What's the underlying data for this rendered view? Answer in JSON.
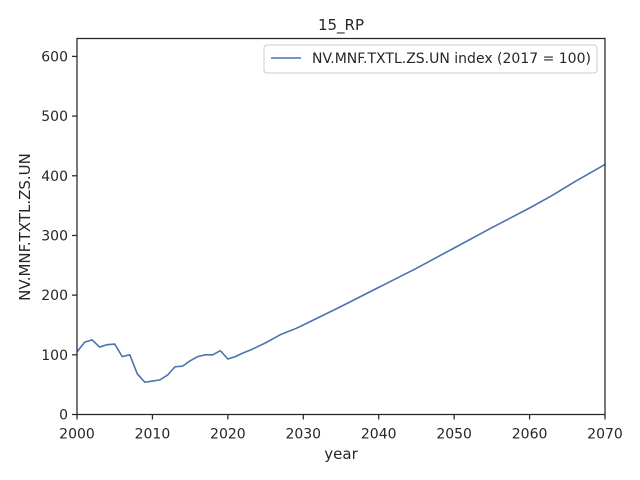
{
  "chart_data": {
    "type": "line",
    "title": "15_RP",
    "xlabel": "year",
    "ylabel": "NV.MNF.TXTL.ZS.UN",
    "xlim": [
      2000,
      2070
    ],
    "ylim": [
      0,
      630
    ],
    "xticks": [
      2000,
      2010,
      2020,
      2030,
      2040,
      2050,
      2060,
      2070
    ],
    "yticks": [
      0,
      100,
      200,
      300,
      400,
      500,
      600
    ],
    "grid": false,
    "legend_position": "top-right",
    "series": [
      {
        "name": "NV.MNF.TXTL.ZS.UN index (2017 = 100)",
        "color": "#4c72b0",
        "x": [
          2000,
          2001,
          2002,
          2003,
          2004,
          2005,
          2006,
          2007,
          2008,
          2009,
          2010,
          2011,
          2012,
          2013,
          2014,
          2015,
          2016,
          2017,
          2018,
          2019,
          2020,
          2021,
          2022,
          2023,
          2024,
          2025,
          2026,
          2027,
          2028,
          2029,
          2030,
          2035,
          2040,
          2045,
          2050,
          2055,
          2060,
          2063,
          2066,
          2070
        ],
        "y": [
          105,
          121,
          125,
          113,
          117,
          118,
          97,
          100,
          68,
          54,
          56,
          58,
          66,
          80,
          81,
          90,
          97,
          100,
          100,
          107,
          93,
          97,
          103,
          108,
          114,
          120,
          127,
          134,
          139,
          144,
          150,
          181,
          213,
          245,
          279,
          313,
          346,
          367,
          390,
          419
        ]
      }
    ]
  }
}
